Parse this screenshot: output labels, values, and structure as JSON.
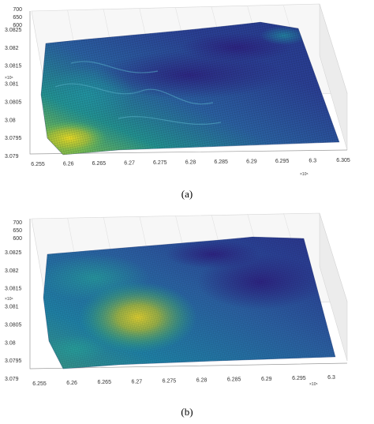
{
  "chart_data": [
    {
      "type": "surface3d",
      "panel_label": "(a)",
      "x_ticks": [
        "6.255",
        "6.26",
        "6.265",
        "6.27",
        "6.275",
        "6.28",
        "6.285",
        "6.29",
        "6.295",
        "6.3",
        "6.305"
      ],
      "x_exponent": "×10⁵",
      "y_ticks": [
        "3.079",
        "3.0795",
        "3.08",
        "3.0805",
        "3.081",
        "3.0815",
        "3.082",
        "3.0825"
      ],
      "y_exponent": "×10⁶",
      "z_ticks": [
        "600",
        "650",
        "700"
      ],
      "colormap": [
        "#2c1f7e",
        "#2a4f9e",
        "#1f7fa4",
        "#21a08c",
        "#5bbf5a",
        "#b9c631",
        "#f0dc22"
      ],
      "grid": true
    },
    {
      "type": "surface3d",
      "panel_label": "(b)",
      "x_ticks": [
        "6.255",
        "6.26",
        "6.265",
        "6.27",
        "6.275",
        "6.28",
        "6.285",
        "6.29",
        "6.295",
        "6.3"
      ],
      "x_exponent": "×10⁵",
      "y_ticks": [
        "3.079",
        "3.0795",
        "3.08",
        "3.0805",
        "3.081",
        "3.0815",
        "3.082",
        "3.0825"
      ],
      "y_exponent": "×10⁶",
      "z_ticks": [
        "600",
        "650",
        "700"
      ],
      "colormap": [
        "#2c1f7e",
        "#2a4f9e",
        "#1f7fa4",
        "#21a08c",
        "#5bbf5a",
        "#b9c631",
        "#f0dc22"
      ],
      "grid": true
    }
  ]
}
